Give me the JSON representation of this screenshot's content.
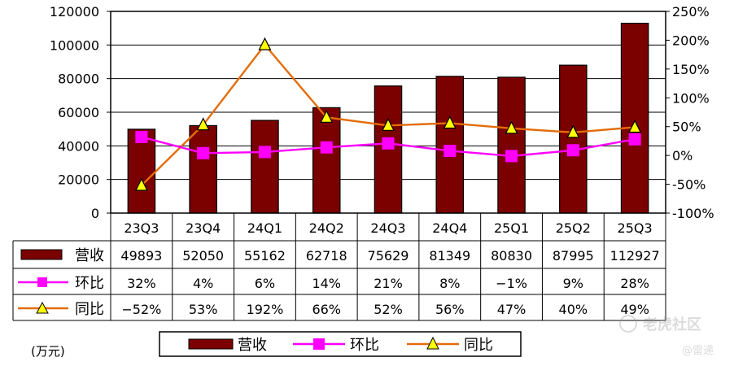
{
  "chart_data": {
    "type": "bar",
    "title": "",
    "xlabel": "",
    "ylabel": "",
    "unit_label": "(万元)",
    "categories": [
      "23Q3",
      "23Q4",
      "24Q1",
      "24Q2",
      "24Q3",
      "24Q4",
      "25Q1",
      "25Q2",
      "25Q3"
    ],
    "ylim": [
      0,
      120000
    ],
    "y_ticks": [
      0,
      20000,
      40000,
      60000,
      80000,
      100000,
      120000
    ],
    "y2lim": [
      -100,
      250
    ],
    "y2_ticks": [
      -100,
      -50,
      0,
      50,
      100,
      150,
      200,
      250
    ],
    "y2_tick_suffix": "%",
    "grid": true,
    "legend_position": "bottom",
    "series": [
      {
        "name": "营收",
        "type": "bar",
        "axis": "left",
        "color": "#7B0000",
        "values": [
          49893,
          52050,
          55162,
          62718,
          75629,
          81349,
          80830,
          87995,
          112927
        ],
        "labels": [
          "49893",
          "52050",
          "55162",
          "62718",
          "75629",
          "81349",
          "80830",
          "87995",
          "112927"
        ]
      },
      {
        "name": "环比",
        "type": "line",
        "axis": "right",
        "marker": "square",
        "color": "#FF00FF",
        "values": [
          32,
          4,
          6,
          14,
          21,
          8,
          -1,
          9,
          28
        ],
        "labels": [
          "32%",
          "4%",
          "6%",
          "14%",
          "21%",
          "8%",
          "−1%",
          "9%",
          "28%"
        ]
      },
      {
        "name": "同比",
        "type": "line",
        "axis": "right",
        "marker": "triangle",
        "color": "#E46C0A",
        "marker_fill": "#FFFF00",
        "values": [
          -52,
          53,
          192,
          66,
          52,
          56,
          47,
          40,
          49
        ],
        "labels": [
          "−52%",
          "53%",
          "192%",
          "66%",
          "52%",
          "56%",
          "47%",
          "40%",
          "49%"
        ]
      }
    ]
  },
  "watermark": {
    "main": "老虎社区",
    "sub": "@雷递"
  }
}
